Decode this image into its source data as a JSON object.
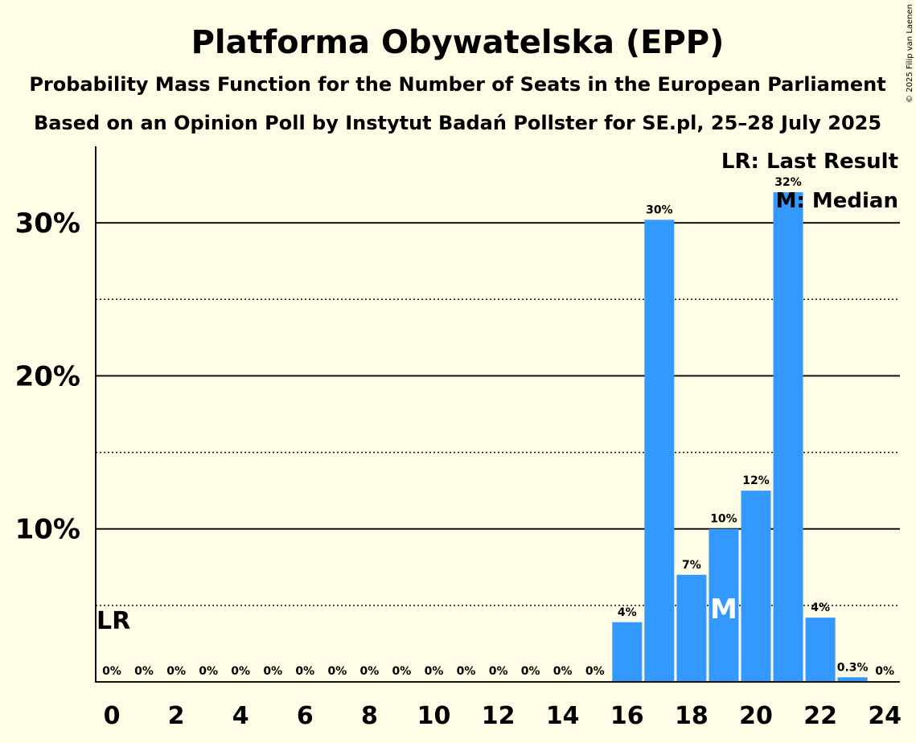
{
  "title": "Platforma Obywatelska (EPP)",
  "subtitle1": "Probability Mass Function for the Number of Seats in the European Parliament",
  "subtitle2": "Based on an Opinion Poll by Instytut Badań Pollster for SE.pl, 25–28 July 2025",
  "copyright": "© 2025 Filip van Laenen",
  "legend": {
    "last_result": "LR: Last Result",
    "median": "M: Median"
  },
  "colors": {
    "background": "#FFFDE6",
    "bar": "#3399FF"
  },
  "chart_data": {
    "type": "bar",
    "categories": [
      0,
      1,
      2,
      3,
      4,
      5,
      6,
      7,
      8,
      9,
      10,
      11,
      12,
      13,
      14,
      15,
      16,
      17,
      18,
      19,
      20,
      21,
      22,
      23,
      24
    ],
    "values": [
      0,
      0,
      0,
      0,
      0,
      0,
      0,
      0,
      0,
      0,
      0,
      0,
      0,
      0,
      0,
      0,
      3.9,
      30.2,
      7.0,
      10.0,
      12.5,
      32.0,
      4.2,
      0.3,
      0
    ],
    "value_labels": [
      "0%",
      "0%",
      "0%",
      "0%",
      "0%",
      "0%",
      "0%",
      "0%",
      "0%",
      "0%",
      "0%",
      "0%",
      "0%",
      "0%",
      "0%",
      "0%",
      "4%",
      "30%",
      "7%",
      "10%",
      "12%",
      "32%",
      "4%",
      "0.3%",
      "0%"
    ],
    "x_tick_labels": [
      "0",
      "2",
      "4",
      "6",
      "8",
      "10",
      "12",
      "14",
      "16",
      "18",
      "20",
      "22",
      "24"
    ],
    "y_tick_labels": [
      "10%",
      "20%",
      "30%"
    ],
    "ylim": [
      0,
      35
    ],
    "y_major_gridlines": [
      10,
      20,
      30
    ],
    "y_minor_gridlines": [
      5,
      15,
      25
    ],
    "last_result": {
      "seat": 0,
      "label": "LR"
    },
    "median": {
      "seat": 19,
      "label": "M"
    },
    "legend_position": "top-right"
  }
}
